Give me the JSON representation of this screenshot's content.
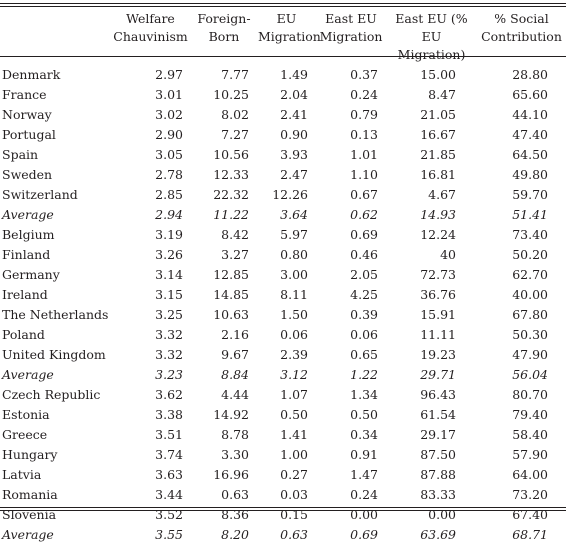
{
  "table": {
    "headers": [
      "",
      "Welfare Chauvinism",
      "Foreign-Born",
      "EU Migration",
      "East EU Migration",
      "East EU (% EU Migration)",
      "% Social Contribution"
    ],
    "rows": [
      {
        "country": "Denmark",
        "values": [
          "2.97",
          "7.77",
          "1.49",
          "0.37",
          "15.00",
          "28.80"
        ],
        "average": false
      },
      {
        "country": "France",
        "values": [
          "3.01",
          "10.25",
          "2.04",
          "0.24",
          "8.47",
          "65.60"
        ],
        "average": false
      },
      {
        "country": "Norway",
        "values": [
          "3.02",
          "8.02",
          "2.41",
          "0.79",
          "21.05",
          "44.10"
        ],
        "average": false
      },
      {
        "country": "Portugal",
        "values": [
          "2.90",
          "7.27",
          "0.90",
          "0.13",
          "16.67",
          "47.40"
        ],
        "average": false
      },
      {
        "country": "Spain",
        "values": [
          "3.05",
          "10.56",
          "3.93",
          "1.01",
          "21.85",
          "64.50"
        ],
        "average": false
      },
      {
        "country": "Sweden",
        "values": [
          "2.78",
          "12.33",
          "2.47",
          "1.10",
          "16.81",
          "49.80"
        ],
        "average": false
      },
      {
        "country": "Switzerland",
        "values": [
          "2.85",
          "22.32",
          "12.26",
          "0.67",
          "4.67",
          "59.70"
        ],
        "average": false
      },
      {
        "country": "Average",
        "values": [
          "2.94",
          "11.22",
          "3.64",
          "0.62",
          "14.93",
          "51.41"
        ],
        "average": true
      },
      {
        "country": "Belgium",
        "values": [
          "3.19",
          "8.42",
          "5.97",
          "0.69",
          "12.24",
          "73.40"
        ],
        "average": false
      },
      {
        "country": "Finland",
        "values": [
          "3.26",
          "3.27",
          "0.80",
          "0.46",
          "40",
          "50.20"
        ],
        "average": false
      },
      {
        "country": "Germany",
        "values": [
          "3.14",
          "12.85",
          "3.00",
          "2.05",
          "72.73",
          "62.70"
        ],
        "average": false
      },
      {
        "country": "Ireland",
        "values": [
          "3.15",
          "14.85",
          "8.11",
          "4.25",
          "36.76",
          "40.00"
        ],
        "average": false
      },
      {
        "country": "The Netherlands",
        "values": [
          "3.25",
          "10.63",
          "1.50",
          "0.39",
          "15.91",
          "67.80"
        ],
        "average": false
      },
      {
        "country": "Poland",
        "values": [
          "3.32",
          "2.16",
          "0.06",
          "0.06",
          "11.11",
          "50.30"
        ],
        "average": false
      },
      {
        "country": "United Kingdom",
        "values": [
          "3.32",
          "9.67",
          "2.39",
          "0.65",
          "19.23",
          "47.90"
        ],
        "average": false
      },
      {
        "country": "Average",
        "values": [
          "3.23",
          "8.84",
          "3.12",
          "1.22",
          "29.71",
          "56.04"
        ],
        "average": true
      },
      {
        "country": "Czech Republic",
        "values": [
          "3.62",
          "4.44",
          "1.07",
          "1.34",
          "96.43",
          "80.70"
        ],
        "average": false
      },
      {
        "country": "Estonia",
        "values": [
          "3.38",
          "14.92",
          "0.50",
          "0.50",
          "61.54",
          "79.40"
        ],
        "average": false
      },
      {
        "country": "Greece",
        "values": [
          "3.51",
          "8.78",
          "1.41",
          "0.34",
          "29.17",
          "58.40"
        ],
        "average": false
      },
      {
        "country": "Hungary",
        "values": [
          "3.74",
          "3.30",
          "1.00",
          "0.91",
          "87.50",
          "57.90"
        ],
        "average": false
      },
      {
        "country": "Latvia",
        "values": [
          "3.63",
          "16.96",
          "0.27",
          "1.47",
          "87.88",
          "64.00"
        ],
        "average": false
      },
      {
        "country": "Romania",
        "values": [
          "3.44",
          "0.63",
          "0.03",
          "0.24",
          "83.33",
          "73.20"
        ],
        "average": false
      },
      {
        "country": "Slovenia",
        "values": [
          "3.52",
          "8.36",
          "0.15",
          "0.00",
          "0.00",
          "67.40"
        ],
        "average": false
      },
      {
        "country": "Average",
        "values": [
          "3.55",
          "8.20",
          "0.63",
          "0.69",
          "63.69",
          "68.71"
        ],
        "average": true
      }
    ]
  }
}
